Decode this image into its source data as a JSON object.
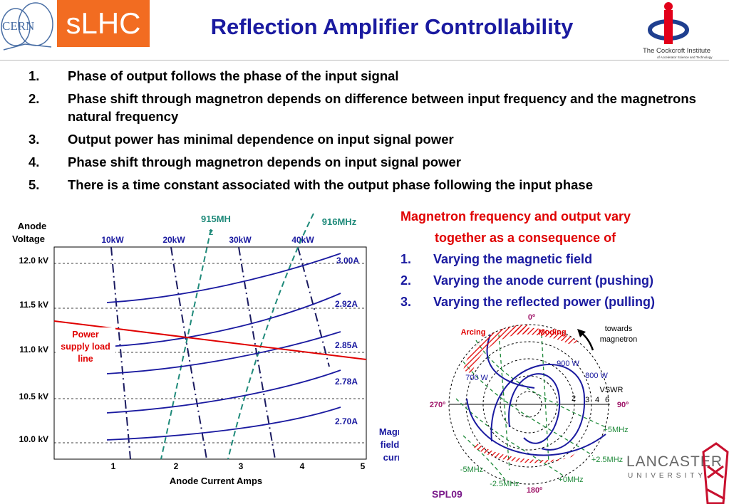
{
  "header": {
    "slhc_logo": "sLHC",
    "title": "Reflection Amplifier Controllability",
    "cern_logo": "CERN",
    "cockcroft_logo": {
      "name": "The Cockcroft Institute",
      "tagline": "of Accelerator Science and Technology"
    },
    "lancaster_logo": {
      "line1": "LANCASTER",
      "line2": "UNIVERSITY"
    }
  },
  "points": [
    {
      "num": "1.",
      "text": "Phase of output follows the phase of the input signal"
    },
    {
      "num": "2.",
      "text": "Phase shift through magnetron depends on difference between input frequency and the magnetrons natural frequency"
    },
    {
      "num": "3.",
      "text": "Output power has minimal dependence on input signal power"
    },
    {
      "num": "4.",
      "text": "Phase shift through magnetron depends on input signal power"
    },
    {
      "num": "5.",
      "text": "There is a time constant associated with the output phase following the input phase"
    }
  ],
  "right_text": {
    "intro_line1": "Magnetron frequency and output vary",
    "intro_line2": "together as a consequence of",
    "items": [
      {
        "num": "1.",
        "text": "Varying the magnetic field"
      },
      {
        "num": "2.",
        "text": "Varying the anode current (pushing)"
      },
      {
        "num": "3.",
        "text": "Varying the reflected power (pulling)"
      }
    ]
  },
  "chart": {
    "ylabel_line1": "Anode",
    "ylabel_line2": "Voltage",
    "xlabel": "Anode Current Amps",
    "x_ticks": [
      "1",
      "2",
      "3",
      "4",
      "5"
    ],
    "y_ticks": [
      "12.0 kV",
      "11.5 kV",
      "11.0 kV",
      "10.5 kV",
      "10.0 kV"
    ],
    "power_labels": [
      "10kW",
      "20kW",
      "30kW",
      "40kW"
    ],
    "freq_label_915_line1": "915MH",
    "freq_label_915_line2": "z",
    "freq_label_916": "916MHz",
    "current_labels": [
      "3.00A",
      "2.92A",
      "2.85A",
      "2.78A",
      "2.70A"
    ],
    "load_line_label": [
      "Power",
      "supply load",
      "line"
    ],
    "field_label": [
      "Magnetic",
      "field coil",
      "current"
    ],
    "colors": {
      "axis_text": "#1a1aa0",
      "curve": "#1a1aa0",
      "freq_line": "#1f8a7a",
      "load_line": "#e00000"
    }
  },
  "smith": {
    "top_label": "0º",
    "bottom_label": "180º",
    "left_label": "270º",
    "right_label": "90º",
    "arcing": "Arcing",
    "moding": "Moding",
    "towards_line1": "towards",
    "towards_line2": "magnetron",
    "powers": [
      "900 W",
      "800 W",
      "700 W"
    ],
    "vswr": "VSWR",
    "vswr_ticks": [
      "2",
      "3",
      "4",
      "6"
    ],
    "freqs": [
      "+5MHz",
      "+2.5MHz",
      "+0MHz",
      "-2.5MHz",
      "-5MHz"
    ]
  },
  "footer": {
    "code": "SPL09"
  }
}
